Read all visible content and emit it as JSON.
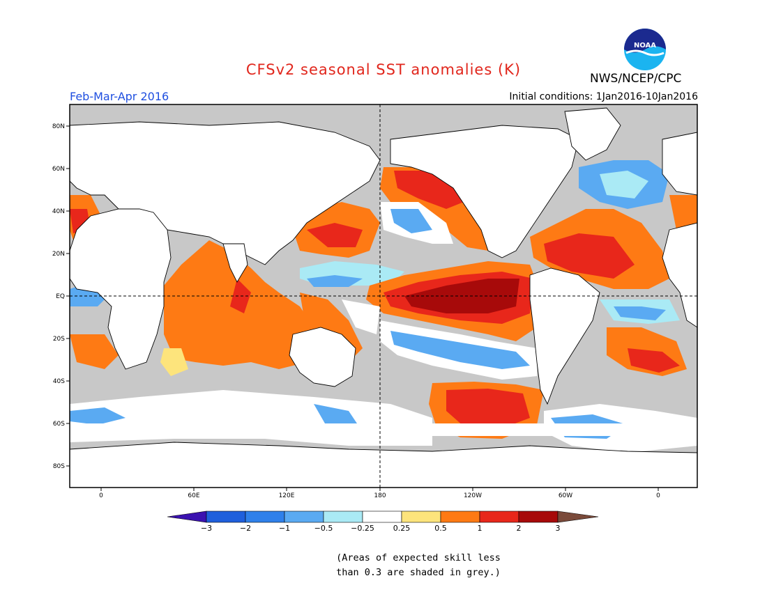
{
  "title": "CFSv2 seasonal SST anomalies (K)",
  "organization": "NWS/NCEP/CPC",
  "logo_text": "NOAA",
  "period": "Feb-Mar-Apr 2016",
  "initial_conditions": "Initial conditions: 1Jan2016-10Jan2016",
  "lat_ticks": [
    "80N",
    "60N",
    "40N",
    "20N",
    "EQ",
    "20S",
    "40S",
    "60S",
    "80S"
  ],
  "lon_ticks": [
    "0",
    "60E",
    "120E",
    "180",
    "120W",
    "60W",
    "0"
  ],
  "colorbar": {
    "labels": [
      "-3",
      "-2",
      "-1",
      "-0.5",
      "-0.25",
      "0.25",
      "0.5",
      "1",
      "2",
      "3"
    ],
    "colors": [
      "#3b12b0",
      "#1f5fdc",
      "#2f80ea",
      "#5aaaf2",
      "#aaeaf5",
      "#ffffff",
      "#fde47c",
      "#fe7a14",
      "#e8271b",
      "#a70a0a",
      "#7a4a3a"
    ]
  },
  "skill_note_line1": "(Areas of expected skill less",
  "skill_note_line2": "than 0.3 are shaded in grey.)",
  "colors": {
    "title": "#e1261c",
    "period": "#1f4fe0",
    "land": "#ffffff",
    "low_skill": "#c8c8c8"
  }
}
